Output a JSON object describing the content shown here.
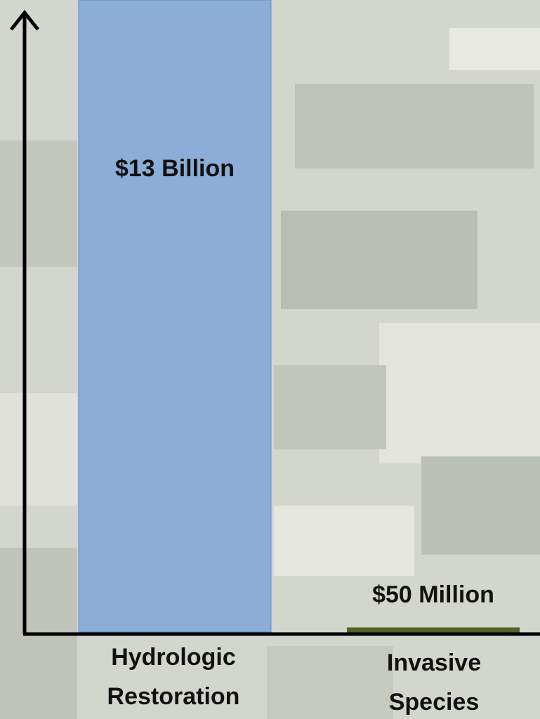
{
  "chart_data": {
    "type": "bar",
    "categories": [
      "Hydrologic Restoration",
      "Invasive Species"
    ],
    "values": [
      13000000000,
      50000000
    ],
    "value_labels": [
      "$13 Billion",
      "$50 Million"
    ],
    "colors": [
      "#7ea6d8",
      "#4f6228"
    ],
    "ylim": [
      0,
      13000000000
    ]
  }
}
